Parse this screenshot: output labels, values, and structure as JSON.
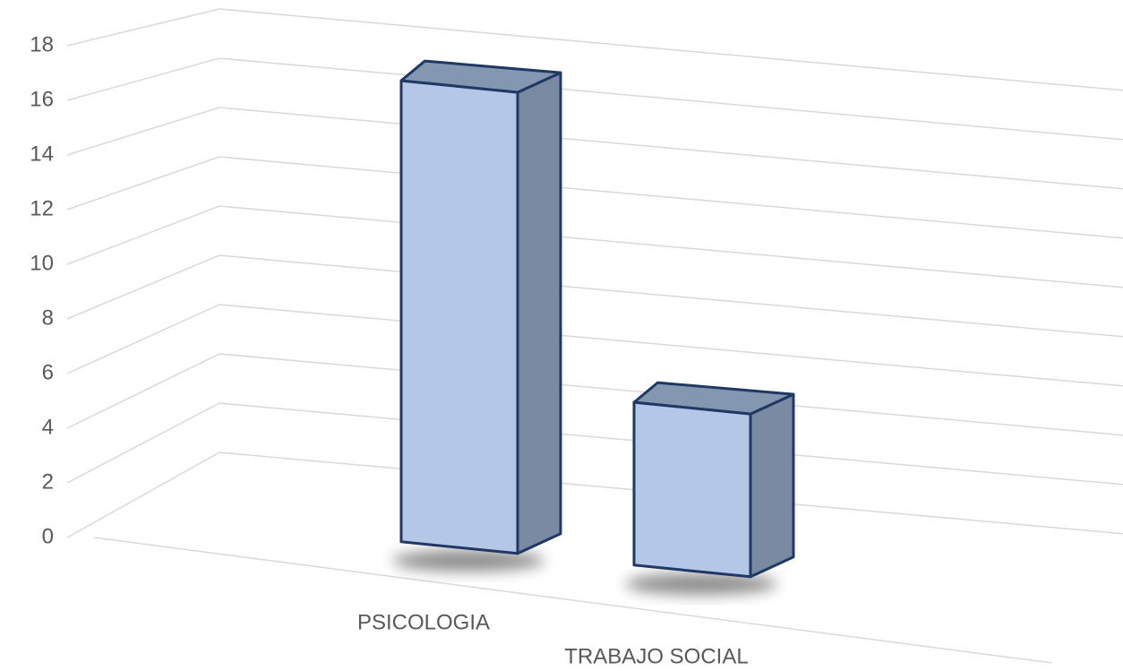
{
  "chart_data": {
    "type": "bar3d",
    "categories": [
      "PSICOLOGIA",
      "TRABAJO SOCIAL"
    ],
    "values": [
      17,
      6
    ],
    "color": "#b4c7e7",
    "ylim": [
      0,
      18
    ],
    "yticks": [
      0,
      2,
      4,
      6,
      8,
      10,
      12,
      14,
      16,
      18
    ],
    "grid": true
  }
}
